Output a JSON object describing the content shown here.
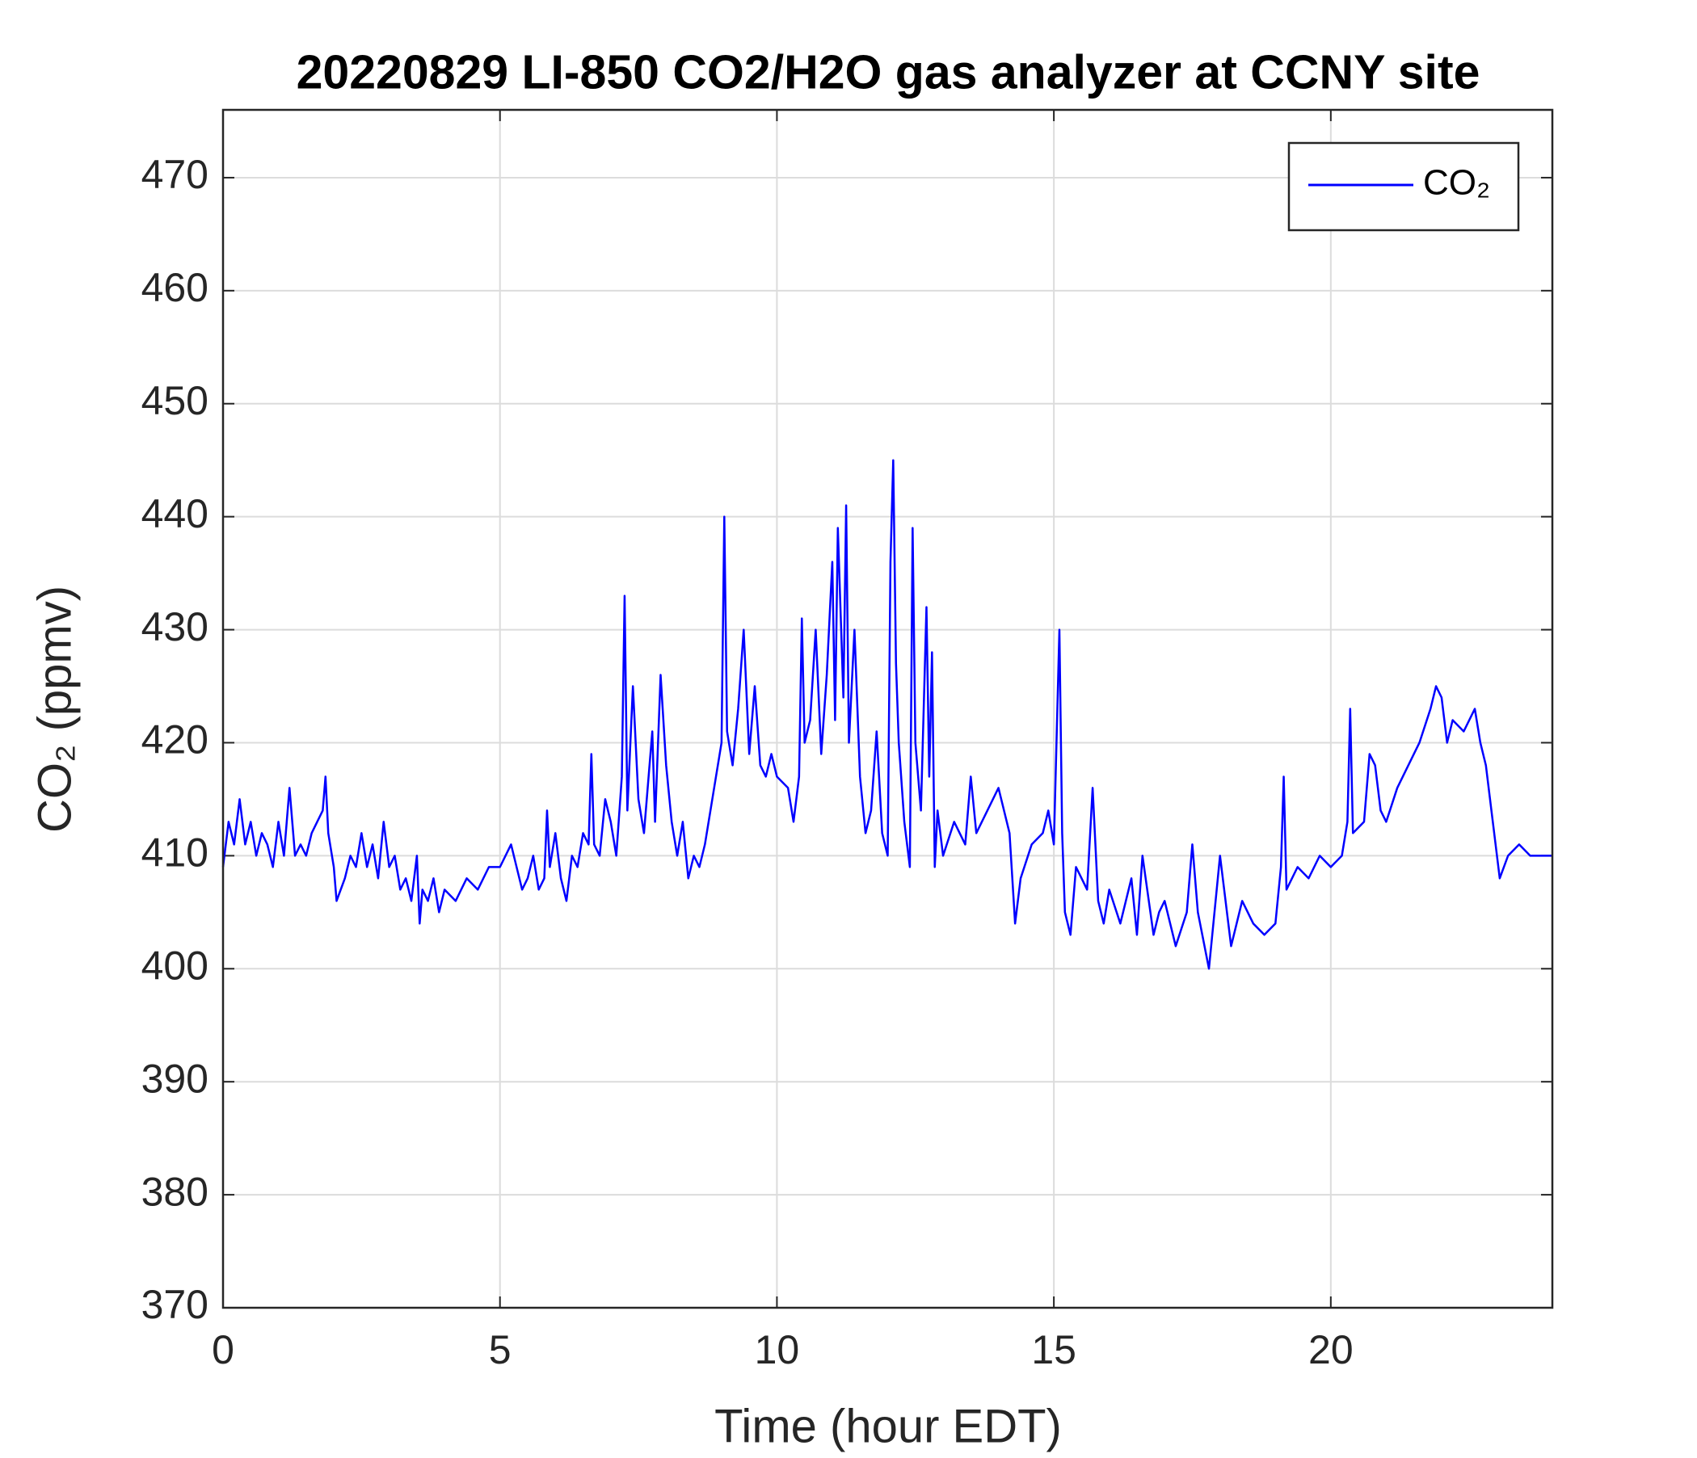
{
  "chart_data": {
    "type": "line",
    "title": "20220829 LI-850 CO2/H2O gas analyzer at CCNY site",
    "x_label": "Time (hour EDT)",
    "y_label": "CO₂ (ppmv)",
    "xlim": [
      0,
      24
    ],
    "xticks": [
      0,
      5,
      10,
      15,
      20
    ],
    "ylim": [
      370,
      476
    ],
    "yticks": [
      370,
      380,
      390,
      400,
      410,
      420,
      430,
      440,
      450,
      460,
      470
    ],
    "grid": true,
    "legend": "upper right",
    "x": [
      0,
      0.1,
      0.2,
      0.3,
      0.4,
      0.5,
      0.6,
      0.7,
      0.8,
      0.9,
      1.0,
      1.1,
      1.2,
      1.3,
      1.4,
      1.5,
      1.6,
      1.7,
      1.8,
      1.85,
      1.9,
      2.0,
      2.05,
      2.2,
      2.3,
      2.4,
      2.5,
      2.6,
      2.7,
      2.8,
      2.9,
      3.0,
      3.1,
      3.2,
      3.3,
      3.4,
      3.5,
      3.55,
      3.6,
      3.7,
      3.8,
      3.9,
      4.0,
      4.2,
      4.4,
      4.6,
      4.8,
      5.0,
      5.2,
      5.3,
      5.4,
      5.5,
      5.6,
      5.7,
      5.8,
      5.85,
      5.9,
      6.0,
      6.1,
      6.2,
      6.3,
      6.4,
      6.5,
      6.6,
      6.65,
      6.7,
      6.8,
      6.9,
      7.0,
      7.1,
      7.2,
      7.25,
      7.3,
      7.4,
      7.5,
      7.6,
      7.7,
      7.75,
      7.8,
      7.9,
      8.0,
      8.1,
      8.2,
      8.3,
      8.4,
      8.5,
      8.6,
      8.7,
      8.8,
      8.9,
      9.0,
      9.05,
      9.1,
      9.2,
      9.3,
      9.4,
      9.5,
      9.6,
      9.7,
      9.8,
      9.9,
      10.0,
      10.2,
      10.3,
      10.4,
      10.45,
      10.5,
      10.6,
      10.7,
      10.8,
      10.9,
      11.0,
      11.05,
      11.1,
      11.2,
      11.25,
      11.3,
      11.4,
      11.5,
      11.6,
      11.7,
      11.8,
      11.9,
      12.0,
      12.05,
      12.1,
      12.15,
      12.2,
      12.3,
      12.4,
      12.45,
      12.5,
      12.6,
      12.7,
      12.75,
      12.8,
      12.85,
      12.9,
      13.0,
      13.2,
      13.4,
      13.5,
      13.6,
      13.8,
      14.0,
      14.2,
      14.3,
      14.4,
      14.6,
      14.8,
      14.9,
      15.0,
      15.1,
      15.15,
      15.2,
      15.3,
      15.4,
      15.5,
      15.6,
      15.7,
      15.8,
      15.9,
      16.0,
      16.2,
      16.4,
      16.5,
      16.6,
      16.8,
      16.9,
      17.0,
      17.2,
      17.4,
      17.5,
      17.6,
      17.8,
      17.9,
      18.0,
      18.2,
      18.4,
      18.6,
      18.8,
      19.0,
      19.1,
      19.15,
      19.2,
      19.4,
      19.6,
      19.8,
      20.0,
      20.2,
      20.3,
      20.35,
      20.4,
      20.6,
      20.7,
      20.8,
      20.9,
      21.0,
      21.2,
      21.4,
      21.6,
      21.8,
      21.9,
      22.0,
      22.1,
      22.2,
      22.4,
      22.6,
      22.7,
      22.8,
      22.9,
      23.0,
      23.05,
      23.2,
      23.4,
      23.6,
      23.8,
      24.0
    ],
    "series": [
      {
        "name": "CO₂",
        "color": "#0000ff",
        "values": [
          409,
          413,
          411,
          415,
          411,
          413,
          410,
          412,
          411,
          409,
          413,
          410,
          416,
          410,
          411,
          410,
          412,
          413,
          414,
          417,
          412,
          409,
          406,
          408,
          410,
          409,
          412,
          409,
          411,
          408,
          413,
          409,
          410,
          407,
          408,
          406,
          410,
          404,
          407,
          406,
          408,
          405,
          407,
          406,
          408,
          407,
          409,
          409,
          411,
          409,
          407,
          408,
          410,
          407,
          408,
          414,
          409,
          412,
          408,
          406,
          410,
          409,
          412,
          411,
          419,
          411,
          410,
          415,
          413,
          410,
          417,
          433,
          414,
          425,
          415,
          412,
          418,
          421,
          413,
          426,
          418,
          413,
          410,
          413,
          408,
          410,
          409,
          411,
          414,
          417,
          420,
          440,
          421,
          418,
          423,
          430,
          419,
          425,
          418,
          417,
          419,
          417,
          416,
          413,
          417,
          431,
          420,
          422,
          430,
          419,
          426,
          436,
          422,
          439,
          424,
          441,
          420,
          430,
          417,
          412,
          414,
          421,
          412,
          410,
          436,
          445,
          427,
          420,
          413,
          409,
          439,
          420,
          414,
          432,
          417,
          428,
          409,
          414,
          410,
          413,
          411,
          417,
          412,
          414,
          416,
          412,
          404,
          408,
          411,
          412,
          414,
          411,
          430,
          412,
          405,
          403,
          409,
          408,
          407,
          416,
          406,
          404,
          407,
          404,
          408,
          403,
          410,
          403,
          405,
          406,
          402,
          405,
          411,
          405,
          400,
          405,
          410,
          402,
          406,
          404,
          403,
          404,
          409,
          417,
          407,
          409,
          408,
          410,
          409,
          410,
          413,
          423,
          412,
          413,
          419,
          418,
          414,
          413,
          416,
          418,
          420,
          423,
          425,
          424,
          420,
          422,
          421,
          423,
          420,
          418,
          414,
          410,
          408,
          410,
          411,
          410,
          410,
          410
        ]
      }
    ]
  }
}
